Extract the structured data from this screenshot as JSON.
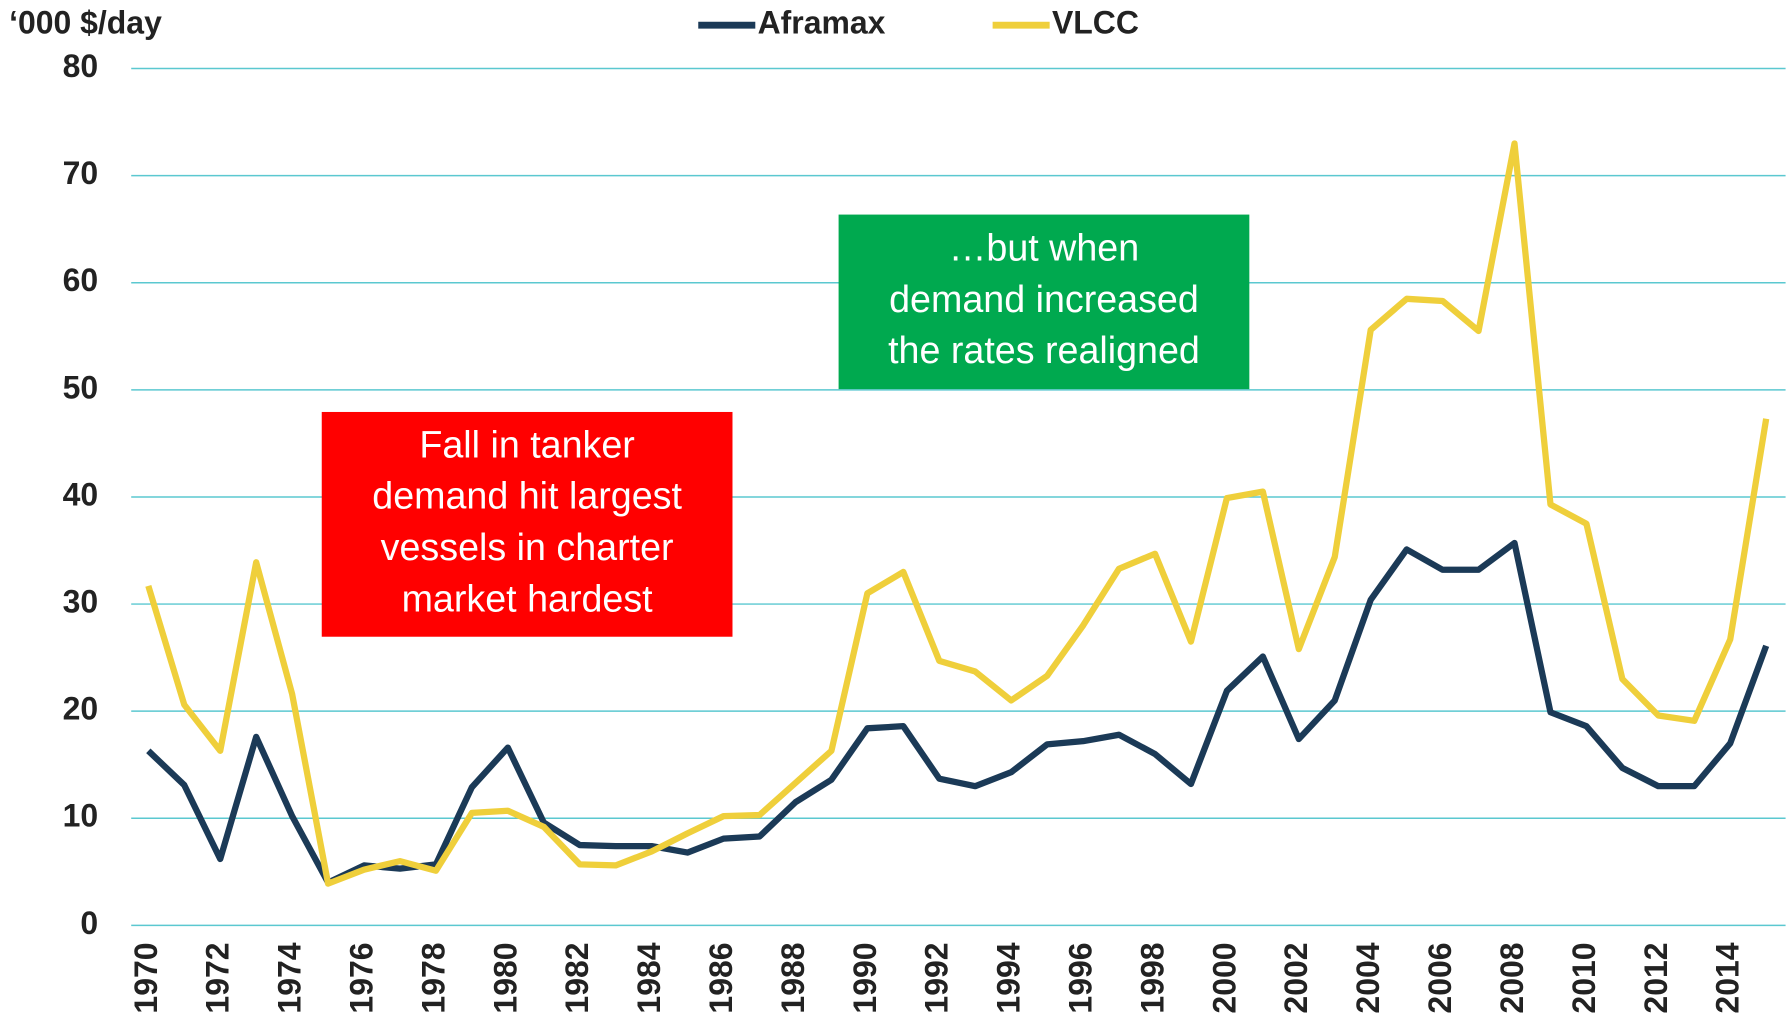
{
  "chart_data": {
    "type": "line",
    "y_label": "‘000 $/day",
    "categories": [
      "1970",
      null,
      "1972",
      null,
      "1974",
      null,
      "1976",
      null,
      "1978",
      null,
      "1980",
      null,
      "1982",
      null,
      "1984",
      null,
      "1986",
      null,
      "1988",
      null,
      "1990",
      null,
      "1992",
      null,
      "1994",
      null,
      "1996",
      null,
      "1998",
      null,
      "2000",
      null,
      "2002",
      null,
      "2004",
      null,
      "2006",
      null,
      "2008",
      null,
      "2010",
      null,
      "2012",
      null,
      "2014",
      null
    ],
    "series": [
      {
        "name": "Aframax",
        "color": "#1b3a57",
        "values": [
          16.3,
          13.1,
          6.2,
          17.6,
          10.2,
          4.0,
          5.6,
          5.3,
          5.7,
          12.9,
          16.6,
          9.6,
          7.5,
          7.4,
          7.4,
          6.8,
          8.1,
          8.3,
          11.5,
          13.6,
          18.4,
          18.6,
          13.7,
          13.0,
          14.3,
          16.9,
          17.2,
          17.8,
          16.0,
          13.2,
          21.9,
          25.1,
          17.4,
          21.0,
          30.4,
          35.1,
          33.2,
          33.2,
          35.7,
          19.9,
          18.6,
          14.7,
          13.0,
          13.0,
          17.0,
          26.1
        ]
      },
      {
        "name": "VLCC",
        "color": "#efcf3b",
        "values": [
          31.7,
          20.6,
          16.3,
          33.9,
          21.6,
          3.9,
          5.2,
          6.0,
          5.1,
          10.5,
          10.7,
          9.2,
          5.7,
          5.6,
          6.9,
          8.6,
          10.2,
          10.3,
          13.3,
          16.3,
          31.0,
          33.0,
          24.7,
          23.7,
          21.0,
          23.3,
          28.0,
          33.3,
          34.7,
          26.5,
          39.9,
          40.5,
          25.8,
          34.4,
          55.6,
          58.5,
          58.3,
          55.5,
          73.0,
          39.3,
          37.5,
          23.0,
          19.6,
          19.1,
          26.7,
          47.3
        ]
      }
    ],
    "ylim": [
      0,
      80
    ],
    "yticks": [
      0,
      10,
      20,
      30,
      40,
      50,
      60,
      70,
      80
    ],
    "grid": true,
    "grid_color": "#5bc8d0",
    "legend": "top",
    "annotations": [
      {
        "lines": [
          "Fall in tanker",
          "demand hit largest",
          "vessels in charter",
          "market hardest"
        ],
        "color": "#ff0000"
      },
      {
        "lines": [
          "…but when",
          "demand increased",
          "the rates realigned"
        ],
        "color": "#00a94f"
      }
    ]
  }
}
